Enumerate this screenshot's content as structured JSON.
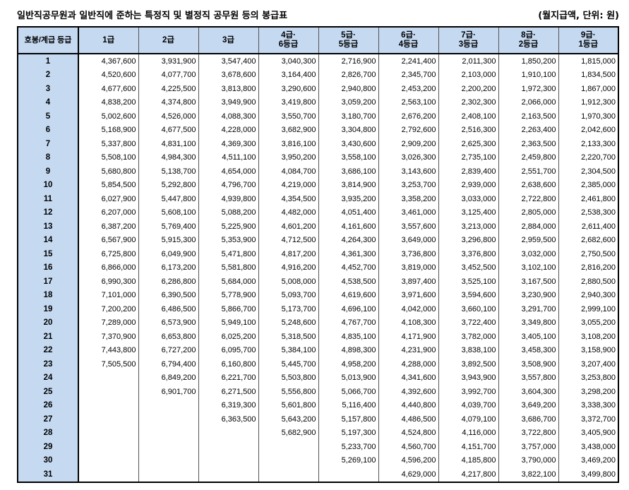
{
  "header": {
    "title": "일반직공무원과 일반직에 준하는 특정직 및 별정직 공무원 등의 봉급표",
    "unit": "(월지급액, 단위: 원)"
  },
  "table": {
    "columns": [
      [
        "호봉/계급 등급"
      ],
      [
        "1급"
      ],
      [
        "2급"
      ],
      [
        "3급"
      ],
      [
        "4급·",
        "6등급"
      ],
      [
        "5급·",
        "5등급"
      ],
      [
        "6급·",
        "4등급"
      ],
      [
        "7급·",
        "3등급"
      ],
      [
        "8급·",
        "2등급"
      ],
      [
        "9급·",
        "1등급"
      ]
    ],
    "rows": [
      [
        1,
        "4,367,600",
        "3,931,900",
        "3,547,400",
        "3,040,300",
        "2,716,900",
        "2,241,400",
        "2,011,300",
        "1,850,200",
        "1,815,000"
      ],
      [
        2,
        "4,520,600",
        "4,077,700",
        "3,678,600",
        "3,164,400",
        "2,826,700",
        "2,345,700",
        "2,103,000",
        "1,910,100",
        "1,834,500"
      ],
      [
        3,
        "4,677,600",
        "4,225,500",
        "3,813,800",
        "3,290,600",
        "2,940,800",
        "2,453,200",
        "2,200,200",
        "1,972,300",
        "1,867,000"
      ],
      [
        4,
        "4,838,200",
        "4,374,800",
        "3,949,900",
        "3,419,800",
        "3,059,200",
        "2,563,100",
        "2,302,300",
        "2,066,000",
        "1,912,300"
      ],
      [
        5,
        "5,002,600",
        "4,526,000",
        "4,088,300",
        "3,550,700",
        "3,180,700",
        "2,676,200",
        "2,408,100",
        "2,163,500",
        "1,970,300"
      ],
      [
        6,
        "5,168,900",
        "4,677,500",
        "4,228,000",
        "3,682,900",
        "3,304,800",
        "2,792,600",
        "2,516,300",
        "2,263,400",
        "2,042,600"
      ],
      [
        7,
        "5,337,800",
        "4,831,100",
        "4,369,300",
        "3,816,100",
        "3,430,600",
        "2,909,200",
        "2,625,300",
        "2,363,500",
        "2,133,300"
      ],
      [
        8,
        "5,508,100",
        "4,984,300",
        "4,511,100",
        "3,950,200",
        "3,558,100",
        "3,026,300",
        "2,735,100",
        "2,459,800",
        "2,220,700"
      ],
      [
        9,
        "5,680,800",
        "5,138,700",
        "4,654,000",
        "4,084,700",
        "3,686,100",
        "3,143,600",
        "2,839,400",
        "2,551,700",
        "2,304,500"
      ],
      [
        10,
        "5,854,500",
        "5,292,800",
        "4,796,700",
        "4,219,000",
        "3,814,900",
        "3,253,700",
        "2,939,000",
        "2,638,600",
        "2,385,000"
      ],
      [
        11,
        "6,027,900",
        "5,447,800",
        "4,939,800",
        "4,354,500",
        "3,935,200",
        "3,358,200",
        "3,033,000",
        "2,722,800",
        "2,461,800"
      ],
      [
        12,
        "6,207,000",
        "5,608,100",
        "5,088,200",
        "4,482,000",
        "4,051,400",
        "3,461,000",
        "3,125,400",
        "2,805,000",
        "2,538,300"
      ],
      [
        13,
        "6,387,200",
        "5,769,400",
        "5,225,900",
        "4,601,200",
        "4,161,600",
        "3,557,600",
        "3,213,000",
        "2,884,000",
        "2,611,400"
      ],
      [
        14,
        "6,567,900",
        "5,915,300",
        "5,353,900",
        "4,712,500",
        "4,264,300",
        "3,649,000",
        "3,296,800",
        "2,959,500",
        "2,682,600"
      ],
      [
        15,
        "6,725,800",
        "6,049,900",
        "5,471,800",
        "4,817,200",
        "4,361,300",
        "3,736,800",
        "3,376,800",
        "3,032,000",
        "2,750,500"
      ],
      [
        16,
        "6,866,000",
        "6,173,200",
        "5,581,800",
        "4,916,200",
        "4,452,700",
        "3,819,000",
        "3,452,500",
        "3,102,100",
        "2,816,200"
      ],
      [
        17,
        "6,990,300",
        "6,286,800",
        "5,684,000",
        "5,008,000",
        "4,538,500",
        "3,897,400",
        "3,525,100",
        "3,167,500",
        "2,880,500"
      ],
      [
        18,
        "7,101,000",
        "6,390,500",
        "5,778,900",
        "5,093,700",
        "4,619,600",
        "3,971,600",
        "3,594,600",
        "3,230,900",
        "2,940,300"
      ],
      [
        19,
        "7,200,200",
        "6,486,500",
        "5,866,700",
        "5,173,700",
        "4,696,100",
        "4,042,000",
        "3,660,100",
        "3,291,700",
        "2,999,100"
      ],
      [
        20,
        "7,289,000",
        "6,573,900",
        "5,949,100",
        "5,248,600",
        "4,767,700",
        "4,108,300",
        "3,722,400",
        "3,349,800",
        "3,055,200"
      ],
      [
        21,
        "7,370,900",
        "6,653,800",
        "6,025,200",
        "5,318,500",
        "4,835,100",
        "4,171,900",
        "3,782,000",
        "3,405,100",
        "3,108,200"
      ],
      [
        22,
        "7,443,800",
        "6,727,200",
        "6,095,700",
        "5,384,100",
        "4,898,300",
        "4,231,900",
        "3,838,100",
        "3,458,300",
        "3,158,900"
      ],
      [
        23,
        "7,505,500",
        "6,794,400",
        "6,160,800",
        "5,445,700",
        "4,958,200",
        "4,288,000",
        "3,892,500",
        "3,508,900",
        "3,207,400"
      ],
      [
        24,
        null,
        "6,849,200",
        "6,221,700",
        "5,503,800",
        "5,013,900",
        "4,341,600",
        "3,943,900",
        "3,557,800",
        "3,253,800"
      ],
      [
        25,
        null,
        "6,901,700",
        "6,271,500",
        "5,556,800",
        "5,066,700",
        "4,392,600",
        "3,992,700",
        "3,604,300",
        "3,298,200"
      ],
      [
        26,
        null,
        null,
        "6,319,300",
        "5,601,800",
        "5,116,400",
        "4,440,800",
        "4,039,700",
        "3,649,200",
        "3,338,300"
      ],
      [
        27,
        null,
        null,
        "6,363,500",
        "5,643,200",
        "5,157,800",
        "4,486,500",
        "4,079,100",
        "3,686,700",
        "3,372,700"
      ],
      [
        28,
        null,
        null,
        null,
        "5,682,900",
        "5,197,300",
        "4,524,800",
        "4,116,000",
        "3,722,800",
        "3,405,900"
      ],
      [
        29,
        null,
        null,
        null,
        null,
        "5,233,700",
        "4,560,700",
        "4,151,700",
        "3,757,000",
        "3,438,000"
      ],
      [
        30,
        null,
        null,
        null,
        null,
        "5,269,100",
        "4,596,200",
        "4,185,800",
        "3,790,000",
        "3,469,200"
      ],
      [
        31,
        null,
        null,
        null,
        null,
        null,
        "4,629,000",
        "4,217,800",
        "3,822,100",
        "3,499,800"
      ]
    ]
  }
}
